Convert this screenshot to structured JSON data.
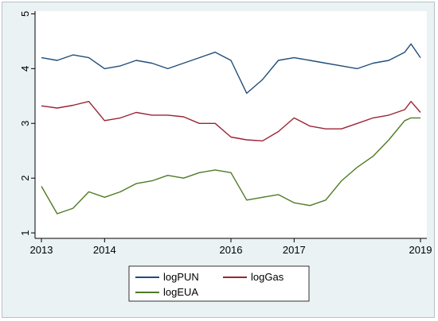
{
  "chart_data": {
    "type": "line",
    "title": "",
    "xlabel": "",
    "ylabel": "",
    "xlim": [
      2013,
      2019
    ],
    "ylim": [
      0.9,
      5.05
    ],
    "x_ticks": [
      2013,
      2014,
      2016,
      2017,
      2019
    ],
    "x_tick_labels": [
      "2013",
      "2014",
      "2016",
      "2017",
      "2019"
    ],
    "y_ticks": [
      1,
      2,
      3,
      4,
      5
    ],
    "y_tick_labels": [
      "1",
      "2",
      "3",
      "4",
      "5"
    ],
    "grid": false,
    "legend_position": "bottom",
    "x": [
      2013.0,
      2013.25,
      2013.5,
      2013.75,
      2014.0,
      2014.25,
      2014.5,
      2014.75,
      2015.0,
      2015.25,
      2015.5,
      2015.75,
      2016.0,
      2016.25,
      2016.5,
      2016.75,
      2017.0,
      2017.25,
      2017.5,
      2017.75,
      2018.0,
      2018.25,
      2018.5,
      2018.75,
      2018.85,
      2019.0
    ],
    "series": [
      {
        "name": "logPUN",
        "color": "#1f4e79",
        "values": [
          4.2,
          4.15,
          4.25,
          4.2,
          4.0,
          4.05,
          4.15,
          4.1,
          4.0,
          4.1,
          4.2,
          4.3,
          4.15,
          3.55,
          3.8,
          4.15,
          4.2,
          4.15,
          4.1,
          4.05,
          4.0,
          4.1,
          4.15,
          4.3,
          4.45,
          4.2
        ],
        "name_key": "logPUN"
      },
      {
        "name": "logGas",
        "color": "#9b2335",
        "values": [
          3.32,
          3.28,
          3.33,
          3.4,
          3.05,
          3.1,
          3.2,
          3.15,
          3.15,
          3.12,
          3.0,
          3.0,
          2.75,
          2.7,
          2.68,
          2.85,
          3.1,
          2.95,
          2.9,
          2.9,
          3.0,
          3.1,
          3.15,
          3.25,
          3.4,
          3.2
        ],
        "name_key": "logGas"
      },
      {
        "name": "logEUA",
        "color": "#4e7a23",
        "values": [
          1.85,
          1.35,
          1.45,
          1.75,
          1.65,
          1.75,
          1.9,
          1.95,
          2.05,
          2.0,
          2.1,
          2.15,
          2.1,
          1.6,
          1.65,
          1.7,
          1.55,
          1.5,
          1.6,
          1.95,
          2.2,
          2.4,
          2.7,
          3.05,
          3.1,
          3.1
        ],
        "name_key": "logEUA"
      }
    ]
  },
  "legend": {
    "items": [
      {
        "label": "logPUN",
        "color": "#1f4e79"
      },
      {
        "label": "logGas",
        "color": "#9b2335"
      },
      {
        "label": "logEUA",
        "color": "#4e7a23"
      }
    ]
  }
}
